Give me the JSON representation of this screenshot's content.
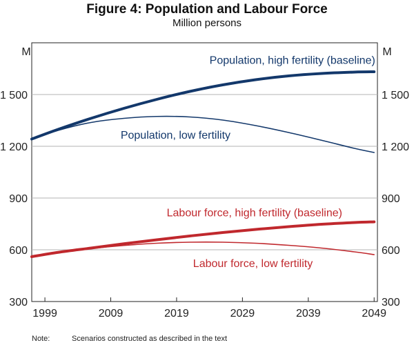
{
  "chart_data": {
    "type": "line",
    "title": "Figure 4: Population and Labour Force",
    "subtitle": "Million persons",
    "unit_left": "M",
    "unit_right": "M",
    "xlim": [
      1997,
      2049.5
    ],
    "ylim": [
      300,
      1800
    ],
    "y_ticks": [
      {
        "value": 300,
        "label": "300"
      },
      {
        "value": 600,
        "label": "600"
      },
      {
        "value": 900,
        "label": "900"
      },
      {
        "value": 1200,
        "label": "1 200"
      },
      {
        "value": 1500,
        "label": "1 500"
      }
    ],
    "x_ticks": [
      {
        "value": 1999,
        "label": "1999"
      },
      {
        "value": 2009,
        "label": "2009"
      },
      {
        "value": 2019,
        "label": "2019"
      },
      {
        "value": 2029,
        "label": "2029"
      },
      {
        "value": 2039,
        "label": "2039"
      },
      {
        "value": 2049,
        "label": "2049"
      }
    ],
    "grid": true,
    "series": [
      {
        "name": "Population, high fertility (baseline)",
        "color": "#13386b",
        "weight": "thick",
        "x": [
          1997,
          2001,
          2006,
          2011,
          2016,
          2021,
          2026,
          2031,
          2036,
          2041,
          2046,
          2049
        ],
        "values": [
          1242,
          1298,
          1362,
          1420,
          1472,
          1518,
          1556,
          1586,
          1608,
          1622,
          1630,
          1632
        ],
        "label_anchor": {
          "x": 2024,
          "y": 1698,
          "align": "start"
        }
      },
      {
        "name": "Population, low fertility",
        "color": "#13386b",
        "weight": "thin",
        "x": [
          1997,
          2001,
          2006,
          2011,
          2016,
          2021,
          2026,
          2031,
          2036,
          2041,
          2046,
          2049
        ],
        "values": [
          1240,
          1292,
          1338,
          1362,
          1373,
          1370,
          1352,
          1320,
          1280,
          1235,
          1188,
          1164
        ],
        "label_anchor": {
          "x": 2010.5,
          "y": 1265,
          "align": "start"
        }
      },
      {
        "name": "Labour force, high fertility (baseline)",
        "color": "#c0282d",
        "weight": "thick",
        "x": [
          1997,
          2001,
          2006,
          2011,
          2016,
          2021,
          2026,
          2031,
          2036,
          2041,
          2046,
          2049
        ],
        "values": [
          560,
          585,
          610,
          635,
          658,
          680,
          700,
          718,
          734,
          748,
          758,
          762
        ],
        "label_anchor": {
          "x": 2017.5,
          "y": 815,
          "align": "start"
        }
      },
      {
        "name": "Labour force, low fertility",
        "color": "#c0282d",
        "weight": "thin",
        "x": [
          1997,
          2001,
          2006,
          2011,
          2016,
          2021,
          2026,
          2031,
          2036,
          2041,
          2046,
          2049
        ],
        "values": [
          558,
          584,
          607,
          625,
          638,
          644,
          644,
          638,
          626,
          610,
          588,
          572
        ],
        "label_anchor": {
          "x": 2021.5,
          "y": 520,
          "align": "start"
        }
      }
    ],
    "note_label": "Note:",
    "note_text": "Scenarios constructed as described in the text"
  }
}
